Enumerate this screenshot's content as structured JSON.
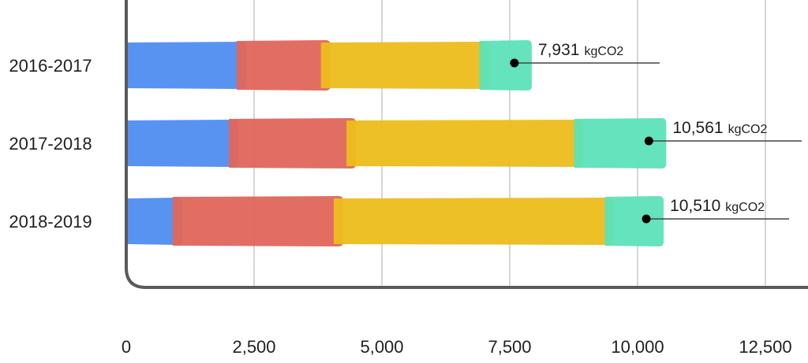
{
  "chart_data": {
    "type": "bar",
    "orientation": "horizontal",
    "stacked": true,
    "categories": [
      "2016-2017",
      "2017-2018",
      "2018-2019"
    ],
    "series": [
      {
        "color": "#4f8df0",
        "values": [
          2250,
          2100,
          1000
        ]
      },
      {
        "color": "#e0665b",
        "values": [
          1650,
          2300,
          3150
        ]
      },
      {
        "color": "#ecbd1c",
        "values": [
          3100,
          4450,
          5300
        ]
      },
      {
        "color": "#5de2b8",
        "values": [
          931,
          1711,
          1060
        ]
      }
    ],
    "totals": [
      {
        "value": "7,931",
        "unit": "kgCO2"
      },
      {
        "value": "10,561",
        "unit": "kgCO2"
      },
      {
        "value": "10,510",
        "unit": "kgCO2"
      }
    ],
    "x_ticks": [
      "0",
      "2,500",
      "5,000",
      "7,500",
      "10,000",
      "12,500"
    ],
    "x_tick_values": [
      0,
      2500,
      5000,
      7500,
      10000,
      12500
    ],
    "xlim": [
      0,
      12500
    ],
    "grid": true,
    "legend": "none"
  }
}
